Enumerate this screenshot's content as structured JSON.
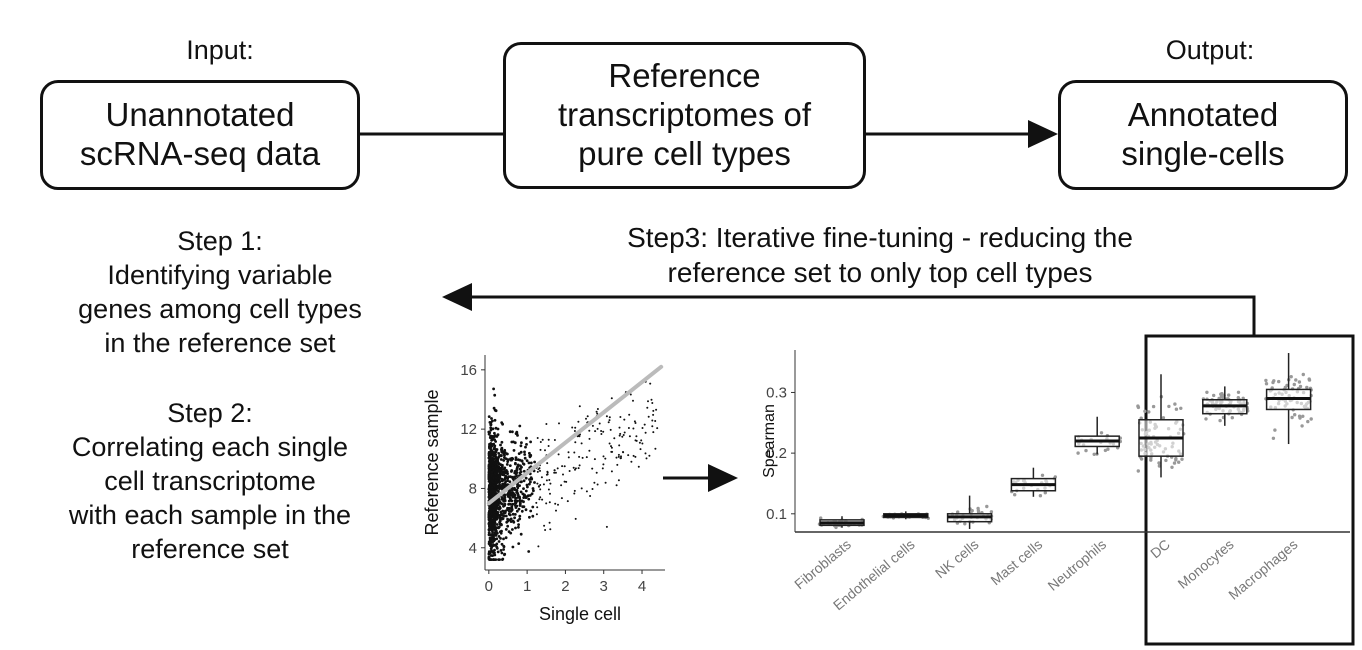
{
  "top": {
    "input_label": "Input:",
    "output_label": "Output:",
    "input_box": [
      "Unannotated",
      "scRNA-seq data"
    ],
    "reference_box": [
      "Reference",
      "transcriptomes of",
      "pure cell types"
    ],
    "output_box": [
      "Annotated",
      "single-cells"
    ]
  },
  "step1": {
    "title": "Step 1:",
    "lines": [
      "Identifying variable",
      "genes among cell types",
      "in the reference set"
    ]
  },
  "step2": {
    "title": "Step 2:",
    "lines": [
      "Correlating each single",
      "cell transcriptome",
      "with each sample in the",
      "reference set"
    ]
  },
  "step3": {
    "lines": [
      "Step3: Iterative fine-tuning - reducing the",
      "reference set to only top cell types"
    ]
  },
  "chart_data": [
    {
      "type": "scatter",
      "xlabel": "Single cell",
      "ylabel": "Reference sample",
      "xticks": [
        "0",
        "1",
        "2",
        "3",
        "4"
      ],
      "yticks": [
        "4",
        "8",
        "12",
        "16"
      ],
      "xlim": [
        -0.1,
        4.6
      ],
      "ylim": [
        2.5,
        17
      ],
      "trend_line": {
        "x": [
          0,
          4.5
        ],
        "y": [
          7.0,
          16.2
        ]
      },
      "point_color": "#111111",
      "line_color": "#bbbbbb"
    },
    {
      "type": "box",
      "ylabel": "Spearman",
      "yticks": [
        "0.1",
        "0.2",
        "0.3"
      ],
      "ylim": [
        0.07,
        0.37
      ],
      "categories": [
        "Fibroblasts",
        "Endothelial cells",
        "NK cells",
        "Mast cells",
        "Neutrophils",
        "DC",
        "Monocytes",
        "Macrophages"
      ],
      "medians": [
        0.085,
        0.097,
        0.095,
        0.148,
        0.22,
        0.225,
        0.278,
        0.29
      ],
      "q1": [
        0.081,
        0.094,
        0.087,
        0.138,
        0.211,
        0.195,
        0.265,
        0.272
      ],
      "q3": [
        0.09,
        0.1,
        0.1,
        0.158,
        0.228,
        0.255,
        0.288,
        0.305
      ],
      "whisker_low": [
        0.077,
        0.091,
        0.075,
        0.128,
        0.198,
        0.16,
        0.245,
        0.215
      ],
      "whisker_high": [
        0.096,
        0.104,
        0.13,
        0.176,
        0.26,
        0.33,
        0.31,
        0.365
      ],
      "highlighted_categories": [
        "DC",
        "Monocytes",
        "Macrophages"
      ]
    }
  ]
}
